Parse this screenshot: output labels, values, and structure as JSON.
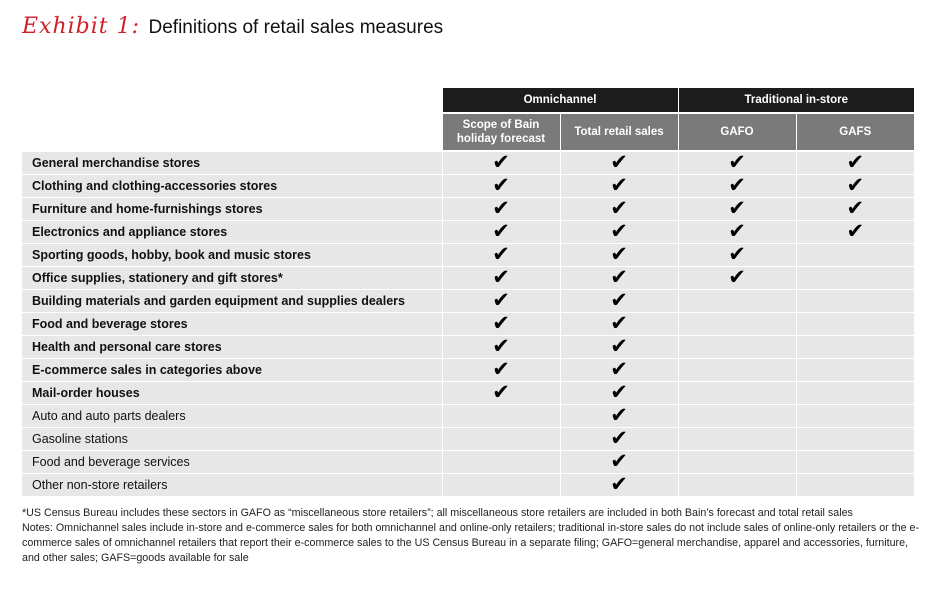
{
  "header": {
    "exhibit_label": "Exhibit 1:",
    "title": "Definitions of retail sales measures"
  },
  "table": {
    "groups": [
      {
        "label": "Omnichannel",
        "span": 2
      },
      {
        "label": "Traditional in-store",
        "span": 2
      }
    ],
    "columns": [
      "Scope of Bain holiday forecast",
      "Total retail sales",
      "GAFO",
      "GAFS"
    ],
    "check_glyph": "✔",
    "rows": [
      {
        "label": "General merchandise stores",
        "bold": true,
        "checks": [
          true,
          true,
          true,
          true
        ]
      },
      {
        "label": "Clothing and clothing-accessories stores",
        "bold": true,
        "checks": [
          true,
          true,
          true,
          true
        ]
      },
      {
        "label": "Furniture and home-furnishings stores",
        "bold": true,
        "checks": [
          true,
          true,
          true,
          true
        ]
      },
      {
        "label": "Electronics and appliance stores",
        "bold": true,
        "checks": [
          true,
          true,
          true,
          true
        ]
      },
      {
        "label": "Sporting goods, hobby, book and music stores",
        "bold": true,
        "checks": [
          true,
          true,
          true,
          false
        ]
      },
      {
        "label": "Office supplies, stationery and gift stores*",
        "bold": true,
        "checks": [
          true,
          true,
          true,
          false
        ]
      },
      {
        "label": "Building materials and garden equipment and supplies dealers",
        "bold": true,
        "checks": [
          true,
          true,
          false,
          false
        ]
      },
      {
        "label": "Food and beverage stores",
        "bold": true,
        "checks": [
          true,
          true,
          false,
          false
        ]
      },
      {
        "label": "Health and personal care stores",
        "bold": true,
        "checks": [
          true,
          true,
          false,
          false
        ]
      },
      {
        "label": "E-commerce sales in categories above",
        "bold": true,
        "checks": [
          true,
          true,
          false,
          false
        ]
      },
      {
        "label": "Mail-order houses",
        "bold": true,
        "checks": [
          true,
          true,
          false,
          false
        ]
      },
      {
        "label": "Auto and auto parts dealers",
        "bold": false,
        "checks": [
          false,
          true,
          false,
          false
        ]
      },
      {
        "label": "Gasoline stations",
        "bold": false,
        "checks": [
          false,
          true,
          false,
          false
        ]
      },
      {
        "label": "Food and beverage services",
        "bold": false,
        "checks": [
          false,
          true,
          false,
          false
        ]
      },
      {
        "label": "Other non-store retailers",
        "bold": false,
        "checks": [
          false,
          true,
          false,
          false
        ]
      }
    ]
  },
  "footnotes": {
    "asterisk": "*US Census Bureau includes these sectors in GAFO as “miscellaneous store retailers”; all miscellaneous store retailers are included in both Bain’s forecast and total retail sales",
    "notes": "Notes: Omnichannel sales include in-store and e-commerce sales for both omnichannel and online-only retailers; traditional in-store sales do not include sales of online-only retailers or the e-commerce sales of omnichannel retailers that report their e-commerce sales to the US Census Bureau in a separate filing; GAFO=general merchandise, apparel and accessories, furniture, and other sales; GAFS=goods available for sale"
  }
}
